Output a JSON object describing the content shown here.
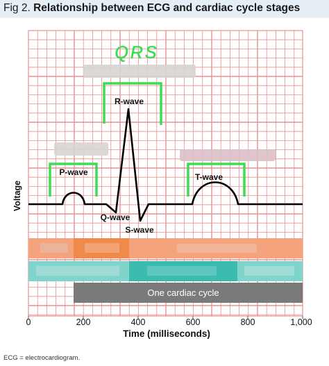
{
  "figure": {
    "label": "Fig 2.",
    "title": "Relationship between ECG and cardiac cycle stages"
  },
  "handwriting": {
    "text": "QRS",
    "color": "#3ddc52"
  },
  "waves": {
    "p": "P-wave",
    "q": "Q-wave",
    "r": "R-wave",
    "s": "S-wave",
    "t": "T-wave"
  },
  "axes": {
    "ylabel": "Voltage",
    "xlabel": "Time (milliseconds)",
    "xlim": [
      0,
      1000
    ],
    "ticks": [
      "0",
      "200",
      "400",
      "600",
      "800",
      "1,000"
    ]
  },
  "bars": {
    "cycle_label": "One cardiac cycle"
  },
  "footnote": "ECG = electrocardiogram.",
  "colors": {
    "grid": "#e89090",
    "trace": "#000000",
    "bracket": "#3ddc52",
    "atrial": "#f5a37c",
    "atrial_dark": "#f08a4b",
    "ventricular": "#7fd4cb",
    "ventricular_dark": "#3cbcb1",
    "cycle": "#7a7a7a",
    "header_bg": "#e6eef5"
  }
}
